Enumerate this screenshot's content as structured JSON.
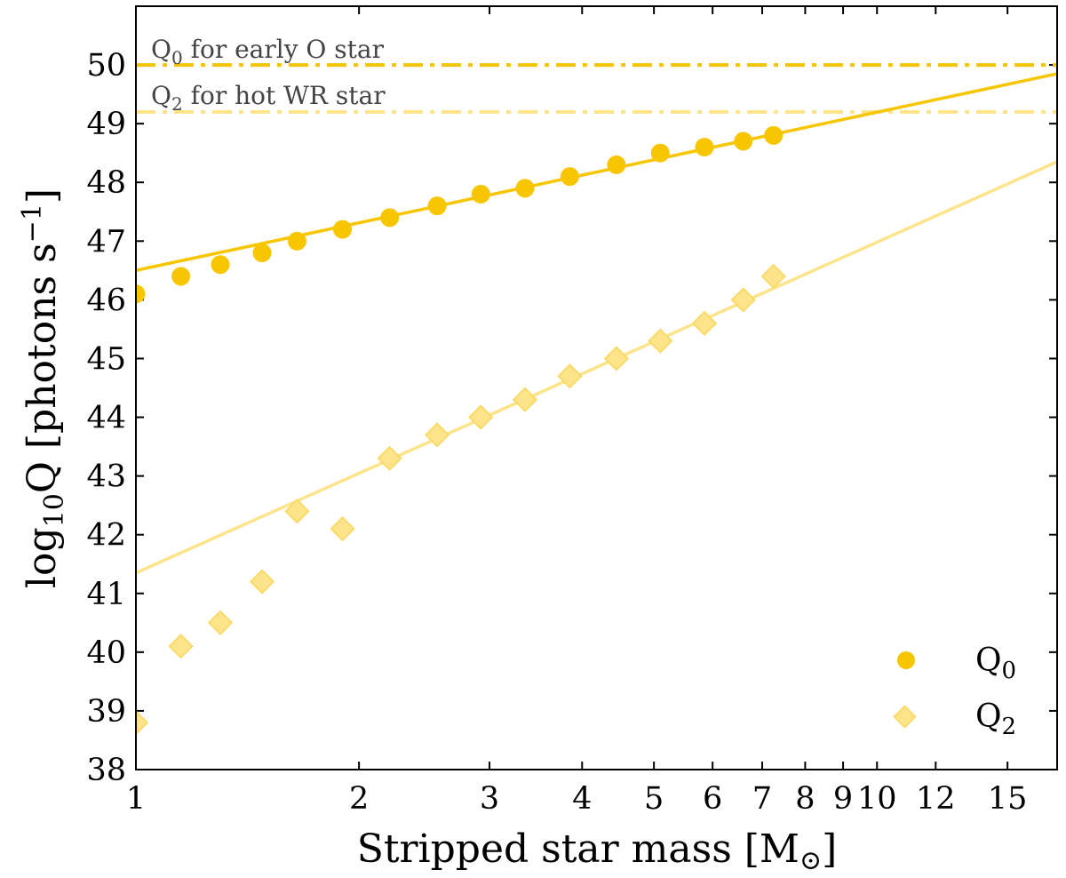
{
  "chart_data": {
    "type": "scatter",
    "xscale": "log",
    "xlabel": "Stripped star mass [M",
    "xlabel_unit_symbol": "⊙",
    "xlabel_close": "]",
    "ylabel_prefix": "log",
    "ylabel_sub": "10",
    "ylabel_mid": "Q [photons s",
    "ylabel_sup": "−1",
    "ylabel_close": "]",
    "xlim": [
      1,
      17.5
    ],
    "ylim": [
      38,
      51
    ],
    "xticks": [
      {
        "v": 1,
        "label": "1"
      },
      {
        "v": 2,
        "label": "2"
      },
      {
        "v": 3,
        "label": "3"
      },
      {
        "v": 4,
        "label": "4"
      },
      {
        "v": 5,
        "label": "5"
      },
      {
        "v": 6,
        "label": "6"
      },
      {
        "v": 7,
        "label": "7"
      },
      {
        "v": 8,
        "label": "8"
      },
      {
        "v": 9,
        "label": "9"
      },
      {
        "v": 10,
        "label": "10"
      },
      {
        "v": 12,
        "label": "12"
      },
      {
        "v": 15,
        "label": "15"
      }
    ],
    "yticks": [
      38,
      39,
      40,
      41,
      42,
      43,
      44,
      45,
      46,
      47,
      48,
      49,
      50
    ],
    "reference_lines": [
      {
        "y": 50.0,
        "label_main": "Q",
        "label_sub": "0",
        "label_rest": " for early O star",
        "color": "#f5c400"
      },
      {
        "y": 49.2,
        "label_main": "Q",
        "label_sub": "2",
        "label_rest": " for hot WR star",
        "color": "#fde48a"
      }
    ],
    "series": [
      {
        "name": "Q",
        "sub": "0",
        "marker": "circle",
        "color": "#f7c600",
        "x": [
          1.0,
          1.15,
          1.3,
          1.48,
          1.65,
          1.9,
          2.2,
          2.55,
          2.92,
          3.35,
          3.85,
          4.45,
          5.1,
          5.85,
          6.6,
          7.25
        ],
        "y": [
          46.1,
          46.4,
          46.6,
          46.8,
          47.0,
          47.2,
          47.4,
          47.6,
          47.8,
          47.9,
          48.1,
          48.3,
          48.5,
          48.6,
          48.7,
          48.8
        ],
        "fit": {
          "x": [
            1,
            17.5
          ],
          "y": [
            46.5,
            49.85
          ]
        }
      },
      {
        "name": "Q",
        "sub": "2",
        "marker": "diamond",
        "color": "#fde48a",
        "x": [
          1.0,
          1.15,
          1.3,
          1.48,
          1.65,
          1.9,
          2.2,
          2.55,
          2.92,
          3.35,
          3.85,
          4.45,
          5.1,
          5.85,
          6.6,
          7.25
        ],
        "y": [
          38.8,
          40.1,
          40.5,
          41.2,
          42.4,
          42.1,
          43.3,
          43.7,
          44.0,
          44.3,
          44.7,
          45.0,
          45.3,
          45.6,
          46.0,
          46.4
        ],
        "fit": {
          "x": [
            1,
            17.5
          ],
          "y": [
            41.35,
            48.35
          ]
        }
      }
    ],
    "legend_position": "bottom-right"
  }
}
